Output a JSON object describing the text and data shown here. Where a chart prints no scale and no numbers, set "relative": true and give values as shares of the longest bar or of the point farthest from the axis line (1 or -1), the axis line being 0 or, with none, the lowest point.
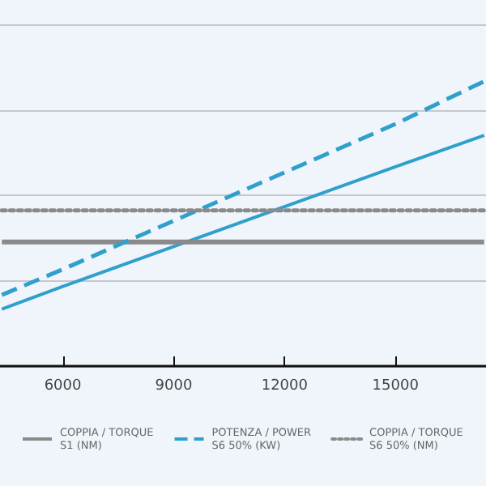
{
  "chart_data": {
    "type": "line",
    "relative": true,
    "xlim": [
      4300,
      17450
    ],
    "xticks": [
      6000,
      9000,
      12000,
      15000
    ],
    "grid": "y",
    "legend": "bottom",
    "marker": "none",
    "x": [
      4350,
      6000,
      9000,
      12000,
      15000,
      17400
    ],
    "series": [
      {
        "color": "#2fa0cc",
        "line_style": "solid",
        "values": [
          0.2,
          0.28,
          0.42,
          0.56,
          0.7,
          0.81
        ]
      },
      {
        "name": "COPPIA / TORQUE\nS1 (NM)",
        "color": "#8a8a8a",
        "line_style": "solid",
        "values": [
          0.436,
          0.436,
          0.436,
          0.436,
          0.436,
          0.436
        ]
      },
      {
        "name": "POTENZA / POWER\nS6 50% (KW)",
        "color": "#2fa0cc",
        "line_style": "dashed",
        "values": [
          0.25,
          0.34,
          0.51,
          0.68,
          0.85,
          1
        ]
      },
      {
        "name": "COPPIA / TORQUE\nS6 50% (NM)",
        "color": "#8a8a8a",
        "line_style": "dotted",
        "values": [
          0.547,
          0.547,
          0.547,
          0.547,
          0.547,
          0.547
        ]
      }
    ]
  }
}
